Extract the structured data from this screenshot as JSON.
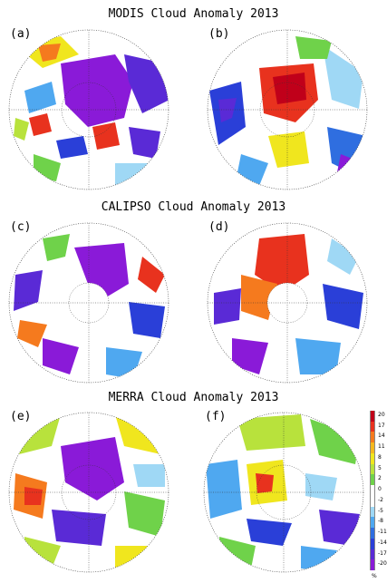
{
  "titles": {
    "modis": "MODIS Cloud Anomaly 2013",
    "calipso": "CALIPSO Cloud Anomaly 2013",
    "merra": "MERRA Cloud Anomaly 2013"
  },
  "panels": [
    {
      "label": "(a)",
      "dataset": "modis"
    },
    {
      "label": "(b)",
      "dataset": "modis"
    },
    {
      "label": "(c)",
      "dataset": "calipso"
    },
    {
      "label": "(d)",
      "dataset": "calipso"
    },
    {
      "label": "(e)",
      "dataset": "merra"
    },
    {
      "label": "(f)",
      "dataset": "merra"
    }
  ],
  "colorbar": {
    "ticks": [
      "20",
      "17",
      "14",
      "11",
      "8",
      "5",
      "2",
      "0",
      "-2",
      "-5",
      "-8",
      "-11",
      "-14",
      "-17",
      "-20"
    ],
    "unit": "%",
    "colors": [
      "#c0001a",
      "#e8321e",
      "#f57a1e",
      "#f5b81e",
      "#f0e61e",
      "#b8e23c",
      "#6fd24a",
      "#ffffff",
      "#ffffff",
      "#9fd8f5",
      "#4fa8f0",
      "#2f6ee0",
      "#2a3fd8",
      "#5a2ad6",
      "#8a1ad8"
    ]
  }
}
